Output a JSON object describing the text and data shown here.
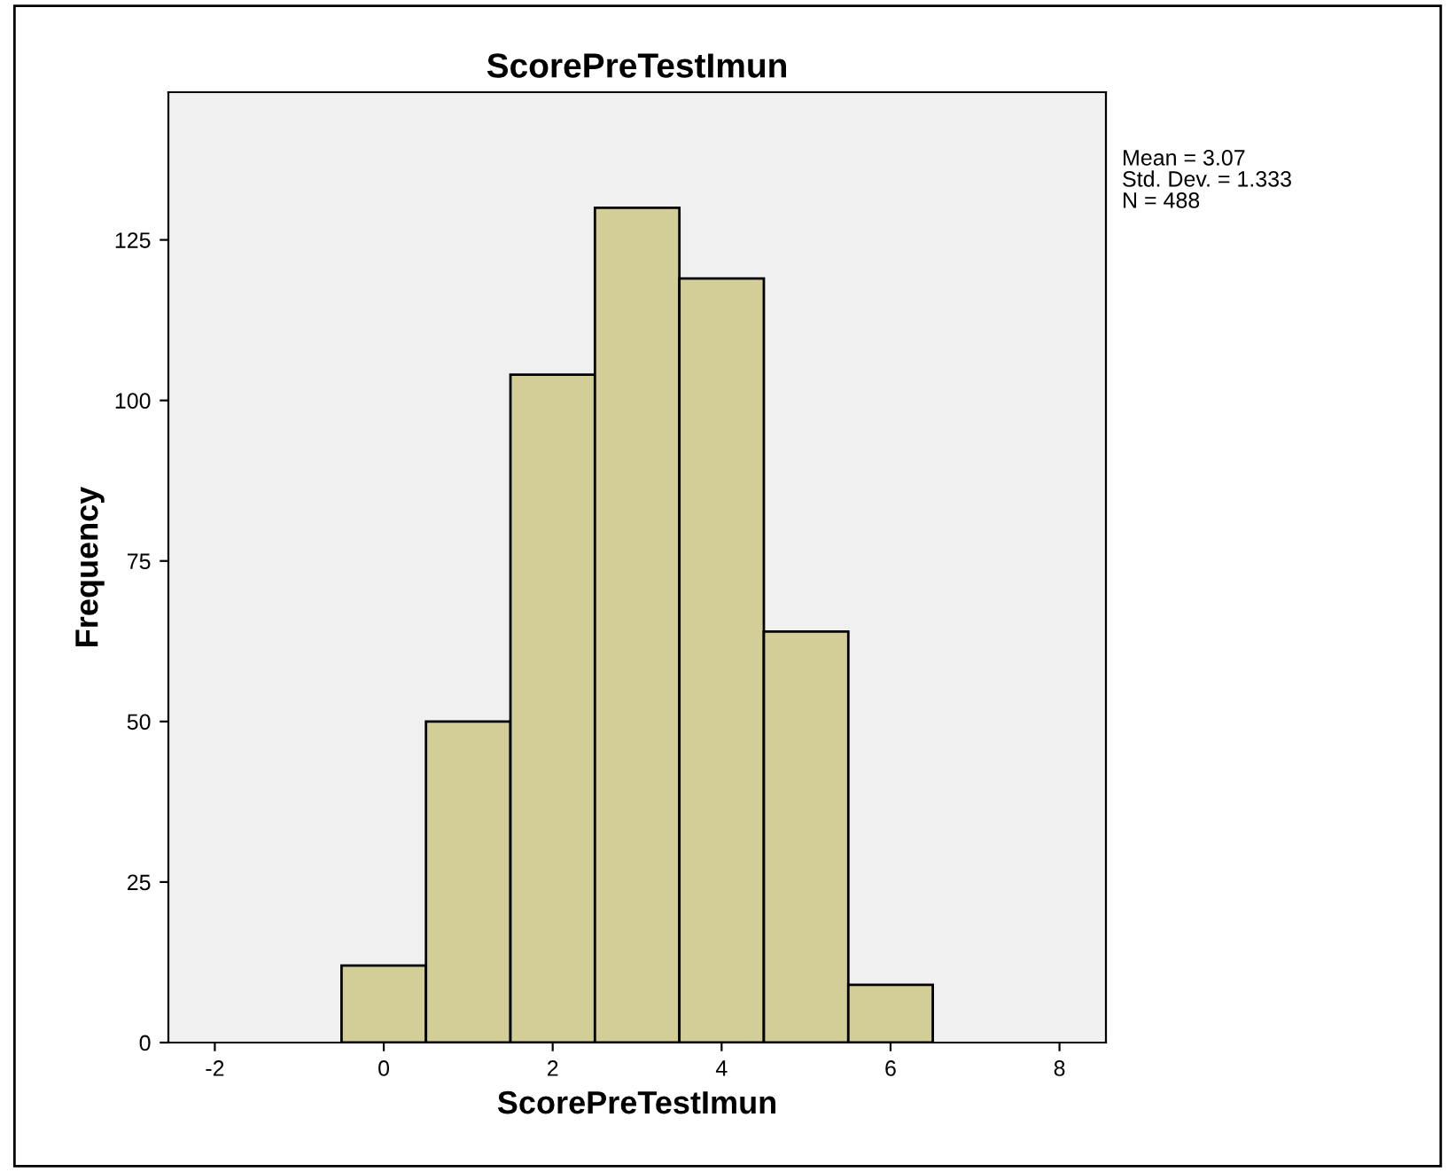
{
  "chart_data": {
    "type": "histogram",
    "title": "ScorePreTestImun",
    "xlabel": "ScorePreTestImun",
    "ylabel": "Frequency",
    "bins": [
      -0.5,
      0.5,
      1.5,
      2.5,
      3.5,
      4.5,
      5.5,
      6.5
    ],
    "values": [
      12,
      50,
      104,
      130,
      119,
      64,
      9
    ],
    "color": "#d3ce97",
    "xlim": [
      -2.55,
      8.55
    ],
    "xticks": [
      -2,
      0,
      2,
      4,
      6,
      8
    ],
    "ylim": [
      0,
      148
    ],
    "yticks": [
      0,
      25,
      50,
      75,
      100,
      125
    ],
    "grid": false,
    "legend": false,
    "annotations": [
      "Mean = 3.07",
      "Std. Dev. = 1.333",
      "N = 488"
    ]
  }
}
